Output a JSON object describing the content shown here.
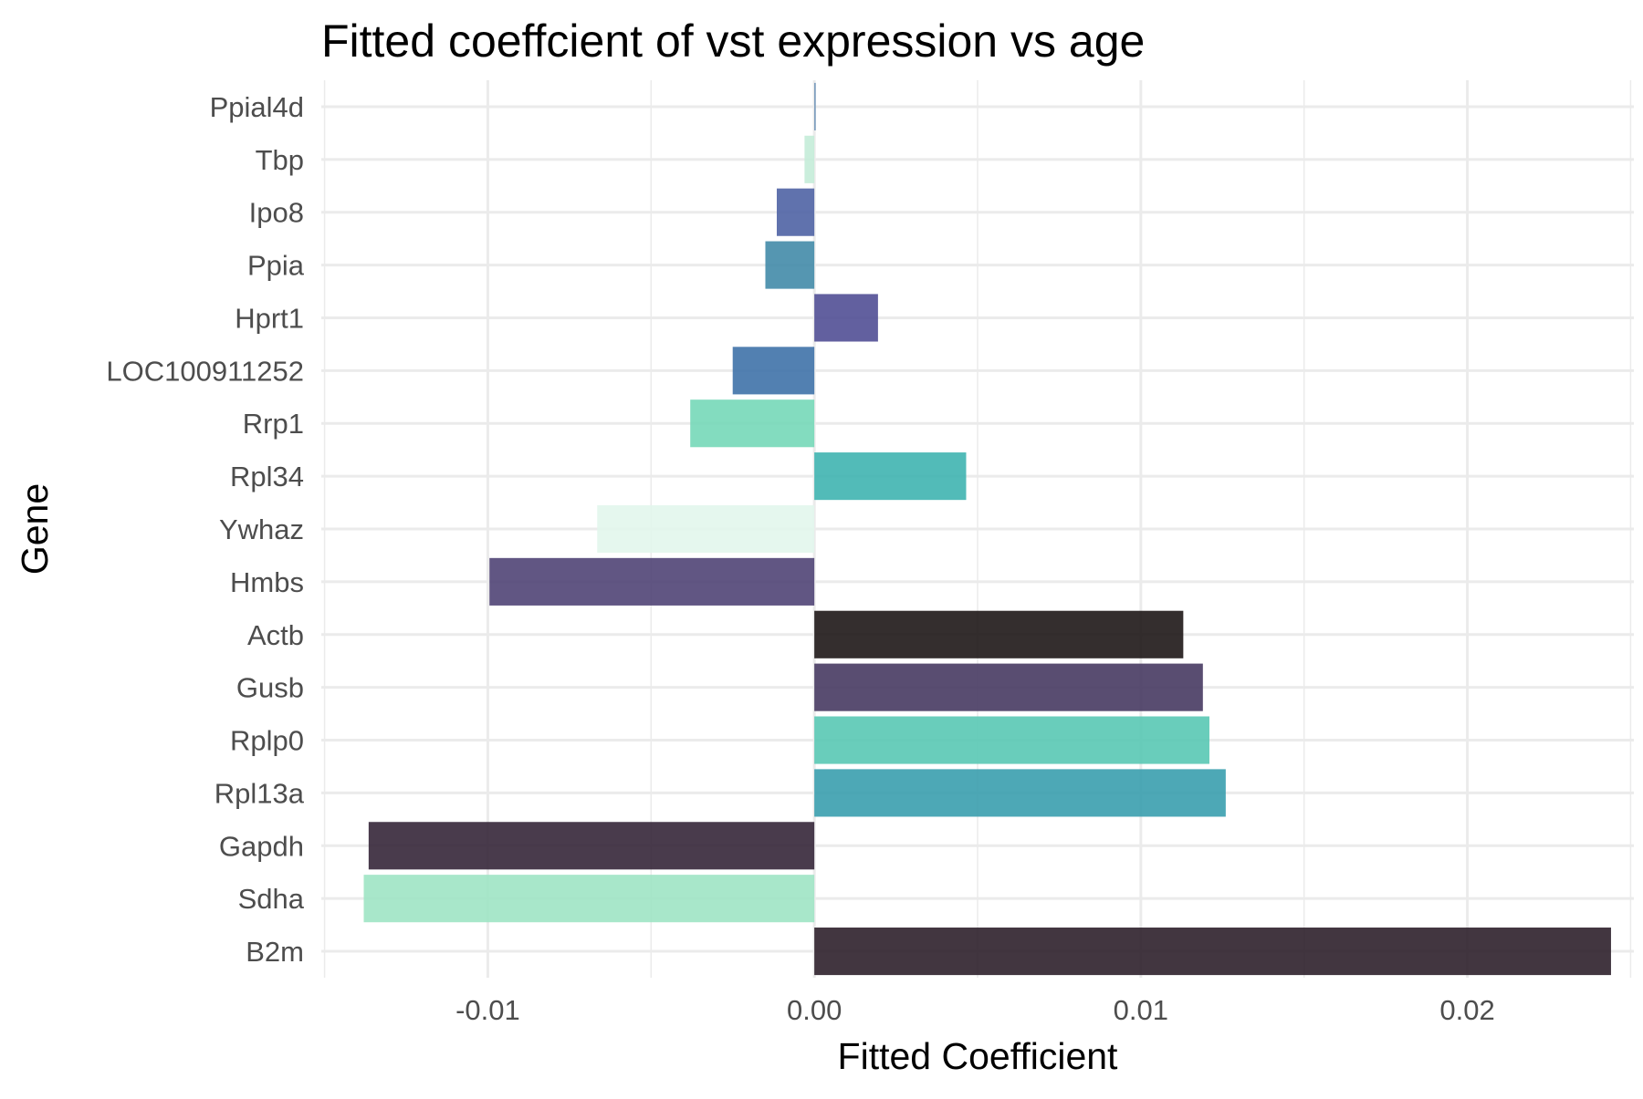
{
  "chart_data": {
    "type": "bar",
    "orientation": "horizontal",
    "title": "Fitted coeffcient of vst expression vs age",
    "xlabel": "Fitted Coefficient",
    "ylabel": "Gene",
    "xlim": [
      -0.0151,
      0.0251
    ],
    "xticks": [
      -0.01,
      0.0,
      0.01,
      0.02
    ],
    "xtick_labels": [
      "-0.01",
      "0.00",
      "0.01",
      "0.02"
    ],
    "grid": true,
    "legend": "none",
    "categories": [
      "Ppial4d",
      "Tbp",
      "Ipo8",
      "Ppia",
      "Hprt1",
      "LOC100911252",
      "Rrp1",
      "Rpl34",
      "Ywhaz",
      "Hmbs",
      "Actb",
      "Gusb",
      "Rplp0",
      "Rpl13a",
      "Gapdh",
      "Sdha",
      "B2m"
    ],
    "values": [
      2e-05,
      -0.0003,
      -0.00115,
      -0.0015,
      0.00195,
      -0.0025,
      -0.0038,
      0.00465,
      -0.00665,
      -0.00995,
      0.0113,
      0.0119,
      0.0121,
      0.0126,
      -0.01365,
      -0.0138,
      0.0244
    ],
    "colors": [
      "#5f88b0",
      "#c4ecd8",
      "#4f63a4",
      "#438ba8",
      "#514f95",
      "#3f72a8",
      "#76d8b8",
      "#3fb4b0",
      "#e2f6ec",
      "#504475",
      "#1e1717",
      "#473a62",
      "#59c8b4",
      "#3a9fae",
      "#352639",
      "#9ee4c4",
      "#2e202b"
    ]
  }
}
